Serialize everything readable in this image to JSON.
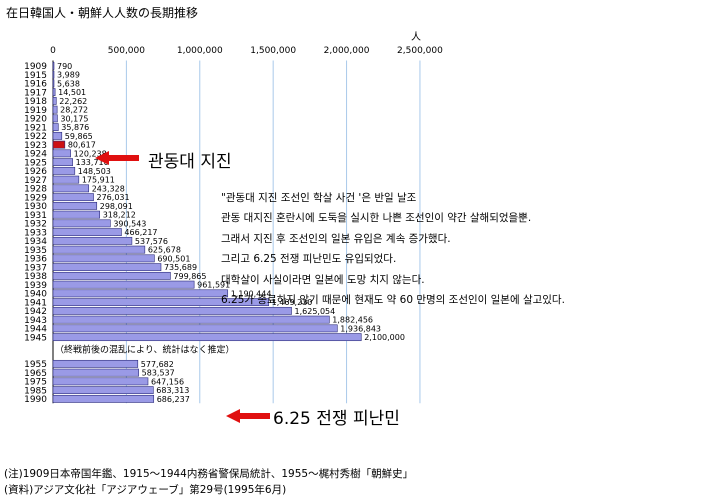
{
  "chart_data": {
    "type": "bar",
    "orientation": "horizontal",
    "title": "在日韓国人・朝鮮人人数の長期推移",
    "xunit": "人",
    "xlim": [
      0,
      2700000
    ],
    "xticks": [
      0,
      500000,
      1000000,
      1500000,
      2000000,
      2500000
    ],
    "xtick_labels": [
      "0",
      "500,000",
      "1,000,000",
      "1,500,000",
      "2,000,000",
      "2,500,000"
    ],
    "grid": true,
    "categories": [
      "1909",
      "1915",
      "1916",
      "1917",
      "1918",
      "1919",
      "1920",
      "1921",
      "1922",
      "1923",
      "1924",
      "1925",
      "1926",
      "1927",
      "1928",
      "1929",
      "1930",
      "1931",
      "1932",
      "1933",
      "1934",
      "1935",
      "1936",
      "1937",
      "1938",
      "1939",
      "1940",
      "1941",
      "1942",
      "1943",
      "1944",
      "1945",
      "1955",
      "1965",
      "1975",
      "1985",
      "1990"
    ],
    "values": [
      790,
      3989,
      5638,
      14501,
      22262,
      28272,
      30175,
      35876,
      59865,
      80617,
      120238,
      133710,
      148503,
      175911,
      243328,
      276031,
      298091,
      318212,
      390543,
      466217,
      537576,
      625678,
      690501,
      735689,
      799865,
      961591,
      1190444,
      1469230,
      1625054,
      1882456,
      1936843,
      2100000,
      577682,
      583537,
      647156,
      683313,
      686237
    ],
    "value_labels": [
      "790",
      "3,989",
      "5,638",
      "14,501",
      "22,262",
      "28,272",
      "30,175",
      "35,876",
      "59,865",
      "80,617",
      "120,238",
      "133,710",
      "148,503",
      "175,911",
      "243,328",
      "276,031",
      "298,091",
      "318,212",
      "390,543",
      "466,217",
      "537,576",
      "625,678",
      "690,501",
      "735,689",
      "799,865",
      "961,591",
      "1,190,444",
      "1,469,230",
      "1,625,054",
      "1,882,456",
      "1,936,843",
      "2,100,000",
      "577,682",
      "583,537",
      "647,156",
      "683,313",
      "686,237"
    ],
    "highlight_category": "1923",
    "bar_color": "#9a9ae6",
    "highlight_color": "#cc1111",
    "gap_note": "（終戦前後の混乱により、統計はなく推定）"
  },
  "annotations": {
    "lines": [
      "\"관동대 지진 조선인 학살 사건 '은 반일 날조",
      "관동 대지진 혼란시에 도둑을 실시한 나쁜 조선인이 약간 살해되었을뿐.",
      "그래서 지진 후 조선인의 일본 유입은 계속 증가했다.",
      "그리고 6.25 전쟁 피난민도 유입되었다.",
      "대학살이 사실이라면 일본에 도망 치지 않는다.",
      "6.25가 종료하지 않기 때문에 현재도 약 60 만명의 조선인이 일본에 살고있다."
    ],
    "callout_earthquake": "관동대 지진",
    "callout_war": "6.25 전쟁 피난민",
    "arrow_color": "#e01010"
  },
  "source": {
    "note": "(注)1909日本帝国年鑑、1915〜1944内務省警保局統計、1955〜梶村秀樹「朝鮮史」",
    "publisher": "(資料)アジア文化社「アジアウェーブ」第29号(1995年6月)"
  }
}
